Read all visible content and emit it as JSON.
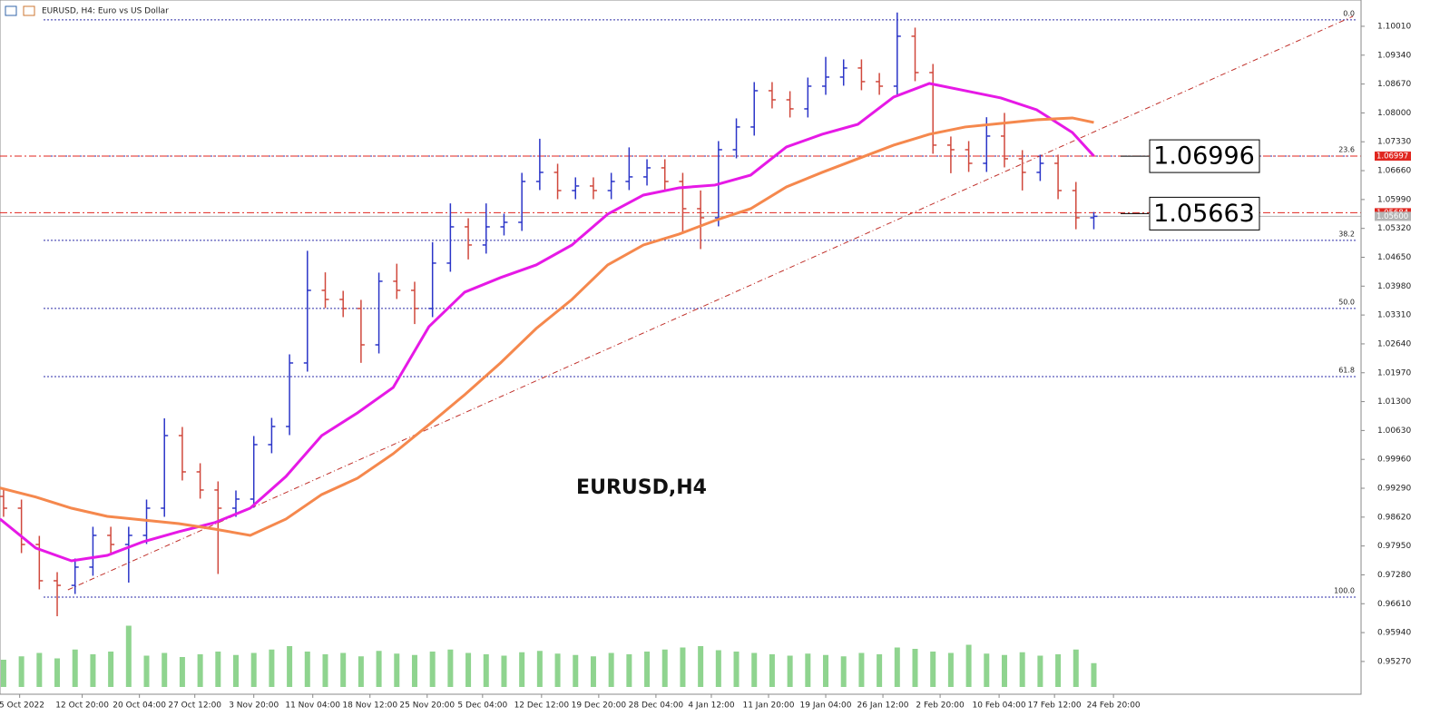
{
  "chart_data": {
    "type": "ohlc",
    "title": "EURUSD, H4:  Euro vs US Dollar",
    "watermark": "EURUSD,H4",
    "up_color": "#2b35c8",
    "down_color": "#d0483c",
    "x": [
      2,
      12,
      22,
      32,
      42,
      52,
      62,
      72,
      82,
      92,
      102,
      112,
      122,
      132,
      142,
      152,
      162,
      172,
      182,
      192,
      202,
      212,
      222,
      232,
      242,
      252,
      262,
      272,
      282,
      292,
      302,
      312,
      322,
      332,
      342,
      352,
      362,
      372,
      382,
      392,
      402,
      412,
      422,
      432,
      442,
      452,
      462,
      472,
      482,
      492,
      502,
      512,
      522,
      532,
      542,
      552,
      562,
      572,
      582,
      592,
      602,
      612
    ],
    "open": [
      0.991,
      0.98827,
      0.97985,
      0.97143,
      0.97036,
      0.97459,
      0.98196,
      0.97985,
      0.98196,
      0.98827,
      1.00512,
      0.9967,
      0.99249,
      0.98827,
      0.99038,
      1.00302,
      1.00723,
      1.02197,
      1.03882,
      1.03671,
      1.03461,
      1.02618,
      1.04093,
      1.03882,
      1.03461,
      1.04514,
      1.05356,
      1.04935,
      1.05356,
      1.05461,
      1.06409,
      1.0662,
      1.06198,
      1.06304,
      1.06198,
      1.06409,
      1.06515,
      1.06725,
      1.06409,
      1.05777,
      1.05567,
      1.07146,
      1.07673,
      1.08515,
      1.08304,
      1.08094,
      1.0862,
      1.08831,
      1.09042,
      1.08726,
      1.0862,
      1.09779,
      1.08936,
      1.07252,
      1.07146,
      1.0683,
      1.07462,
      1.06936,
      1.0662,
      1.0683,
      1.06198,
      1.05567
    ],
    "high": [
      0.993,
      0.99027,
      0.98185,
      0.97343,
      0.97659,
      0.98396,
      0.98396,
      0.98396,
      0.99027,
      1.00912,
      1.00712,
      0.9987,
      0.99449,
      0.99238,
      1.00502,
      1.00923,
      1.02397,
      1.048,
      1.043,
      1.03871,
      1.03661,
      1.04293,
      1.045,
      1.04082,
      1.05,
      1.059,
      1.05556,
      1.059,
      1.05661,
      1.06609,
      1.074,
      1.0682,
      1.06504,
      1.06504,
      1.06609,
      1.072,
      1.06925,
      1.06925,
      1.06609,
      1.062,
      1.07346,
      1.07873,
      1.08715,
      1.08715,
      1.08504,
      1.0882,
      1.093,
      1.09242,
      1.09242,
      1.08926,
      1.1033,
      1.09979,
      1.09136,
      1.07452,
      1.07346,
      1.079,
      1.08,
      1.07136,
      1.0703,
      1.0703,
      1.06398,
      1.057
    ],
    "low": [
      0.98627,
      0.97785,
      0.96943,
      0.9632,
      0.96836,
      0.97259,
      0.97785,
      0.971,
      0.97996,
      0.98627,
      0.9947,
      0.99049,
      0.973,
      0.98627,
      0.98838,
      1.00102,
      1.00523,
      1.01997,
      1.03471,
      1.03261,
      1.022,
      1.02418,
      1.03682,
      1.031,
      1.03261,
      1.04314,
      1.046,
      1.04735,
      1.05156,
      1.05261,
      1.06209,
      1.05998,
      1.05998,
      1.05998,
      1.05998,
      1.06209,
      1.06315,
      1.06209,
      1.052,
      1.0484,
      1.05367,
      1.06946,
      1.07473,
      1.08104,
      1.07894,
      1.07894,
      1.0842,
      1.08631,
      1.08526,
      1.0842,
      1.0842,
      1.08736,
      1.07052,
      1.066,
      1.0663,
      1.0663,
      1.06736,
      1.062,
      1.0642,
      1.05998,
      1.053,
      1.053
    ],
    "close": [
      0.98827,
      0.97985,
      0.97143,
      0.97036,
      0.97459,
      0.98196,
      0.97985,
      0.98196,
      0.98827,
      1.00512,
      0.9967,
      0.99249,
      0.98827,
      0.99038,
      1.00302,
      1.00723,
      1.02197,
      1.03882,
      1.03671,
      1.03461,
      1.02618,
      1.04093,
      1.03882,
      1.03461,
      1.04514,
      1.05356,
      1.04935,
      1.05356,
      1.05461,
      1.06409,
      1.0662,
      1.06198,
      1.06304,
      1.06198,
      1.06409,
      1.06515,
      1.06725,
      1.06409,
      1.05777,
      1.05567,
      1.07146,
      1.07673,
      1.08515,
      1.08304,
      1.08094,
      1.0862,
      1.08831,
      1.09042,
      1.08726,
      1.0862,
      1.09779,
      1.08936,
      1.07252,
      1.07146,
      1.0683,
      1.07462,
      1.06936,
      1.0662,
      1.0683,
      1.06198,
      1.05567,
      1.056
    ],
    "volume": [
      40,
      45,
      50,
      42,
      55,
      48,
      52,
      90,
      46,
      50,
      44,
      48,
      52,
      47,
      50,
      55,
      60,
      52,
      48,
      50,
      45,
      53,
      49,
      47,
      52,
      55,
      50,
      48,
      46,
      51,
      53,
      49,
      47,
      45,
      50,
      48,
      52,
      55,
      58,
      60,
      54,
      52,
      50,
      48,
      46,
      49,
      47,
      45,
      50,
      48,
      58,
      56,
      52,
      50,
      62,
      49,
      47,
      51,
      46,
      48,
      55,
      35
    ],
    "vlim": [
      0,
      100
    ],
    "volume_color": "#8fd48f",
    "moving_averages": [
      {
        "color": "#e619e6",
        "x": [
          0,
          20,
          40,
          60,
          80,
          100,
          120,
          140,
          160,
          180,
          200,
          220,
          240,
          260,
          280,
          300,
          320,
          340,
          360,
          380,
          400,
          420,
          440,
          460,
          480,
          500,
          520,
          540,
          560,
          580,
          600,
          612
        ],
        "values": [
          0.98575,
          0.97901,
          0.97606,
          0.97732,
          0.98048,
          0.9828,
          0.9849,
          0.98827,
          0.99564,
          1.00512,
          1.01039,
          1.01628,
          1.0304,
          1.0384,
          1.04177,
          1.04472,
          1.04935,
          1.05651,
          1.06093,
          1.06262,
          1.06325,
          1.06556,
          1.07209,
          1.07504,
          1.07736,
          1.08368,
          1.08683,
          1.08515,
          1.08347,
          1.08073,
          1.07546,
          1.06999
        ]
      },
      {
        "color": "#f5884d",
        "x": [
          0,
          20,
          40,
          60,
          80,
          100,
          120,
          140,
          160,
          180,
          200,
          220,
          240,
          260,
          280,
          300,
          320,
          340,
          360,
          380,
          400,
          420,
          440,
          460,
          480,
          500,
          520,
          540,
          560,
          580,
          600,
          612
        ],
        "values": [
          0.99297,
          0.99086,
          0.98827,
          0.98638,
          0.98554,
          0.9847,
          0.98343,
          0.98196,
          0.98575,
          0.99144,
          0.99522,
          1.00091,
          1.00765,
          1.0146,
          1.02197,
          1.02997,
          1.03671,
          1.04472,
          1.04935,
          1.05188,
          1.05503,
          1.05777,
          1.06283,
          1.0662,
          1.06936,
          1.07251,
          1.07504,
          1.07673,
          1.07757,
          1.07841,
          1.07883,
          1.07778
        ]
      }
    ],
    "trendline": {
      "x": [
        38,
        757
      ],
      "values": [
        0.96932,
        1.10242
      ],
      "color": "#c0302a"
    },
    "fib": {
      "levels": [
        {
          "value": 0,
          "label": "0.0"
        },
        23.6,
        38.2,
        {
          "value": 50,
          "label": "50.0"
        },
        61.8,
        {
          "value": 100,
          "label": "100.0"
        }
      ],
      "prices": [
        1.1016,
        1.06999,
        1.05043,
        1.03462,
        1.01881,
        0.96764
      ],
      "color": "#2c2ca8"
    },
    "price_tags": [
      1.06997,
      1.05684,
      {
        "value": 1.056,
        "label": "1.05600"
      }
    ],
    "price_tag_colors": [
      "#e0261f",
      "#e0261f",
      "#b4b4b4"
    ],
    "annotations": [
      1.06996,
      1.05663
    ],
    "xlim": [
      0,
      760
    ],
    "ylim": [
      0.9451,
      1.1062
    ],
    "yticks": [
      {
        "value": 1.1001,
        "label": "1.10010"
      },
      {
        "value": 1.0934,
        "label": "1.09340"
      },
      {
        "value": 1.0867,
        "label": "1.08670"
      },
      {
        "value": 1.08,
        "label": "1.08000"
      },
      {
        "value": 1.0733,
        "label": "1.07330"
      },
      {
        "value": 1.0666,
        "label": "1.06660"
      },
      {
        "value": 1.0599,
        "label": "1.05990"
      },
      {
        "value": 1.0532,
        "label": "1.05320"
      },
      {
        "value": 1.0465,
        "label": "1.04650"
      },
      {
        "value": 1.0398,
        "label": "1.03980"
      },
      {
        "value": 1.0331,
        "label": "1.03310"
      },
      {
        "value": 1.0264,
        "label": "1.02640"
      },
      {
        "value": 1.0197,
        "label": "1.01970"
      },
      {
        "value": 1.013,
        "label": "1.01300"
      },
      {
        "value": 1.0063,
        "label": "1.00630"
      },
      {
        "value": 0.9996,
        "label": "0.99960"
      },
      {
        "value": 0.9929,
        "label": "0.99290"
      },
      {
        "value": 0.9862,
        "label": "0.98620"
      },
      {
        "value": 0.9795,
        "label": "0.97950"
      },
      {
        "value": 0.9728,
        "label": "0.97280"
      },
      {
        "value": 0.9661,
        "label": "0.96610"
      },
      {
        "value": 0.9594,
        "label": "0.95940"
      },
      {
        "value": 0.9527,
        "label": "0.95270"
      }
    ],
    "xticks": [
      {
        "value": 11,
        "label": "5 Oct 2022"
      },
      {
        "value": 46,
        "label": "12 Oct 20:00"
      },
      {
        "value": 78,
        "label": "20 Oct 04:00"
      },
      {
        "value": 109,
        "label": "27 Oct 12:00"
      },
      {
        "value": 142,
        "label": "3 Nov 20:00"
      },
      {
        "value": 175,
        "label": "11 Nov 04:00"
      },
      {
        "value": 207,
        "label": "18 Nov 12:00"
      },
      {
        "value": 239,
        "label": "25 Nov 20:00"
      },
      {
        "value": 270,
        "label": "5 Dec 04:00"
      },
      {
        "value": 303,
        "label": "12 Dec 12:00"
      },
      {
        "value": 335,
        "label": "19 Dec 20:00"
      },
      {
        "value": 367,
        "label": "28 Dec 04:00"
      },
      {
        "value": 398,
        "label": "4 Jan 12:00"
      },
      {
        "value": 430,
        "label": "11 Jan 20:00"
      },
      {
        "value": 462,
        "label": "19 Jan 04:00"
      },
      {
        "value": 494,
        "label": "26 Jan 12:00"
      },
      {
        "value": 526,
        "label": "2 Feb 20:00"
      },
      {
        "value": 559,
        "label": "10 Feb 04:00"
      },
      {
        "value": 590,
        "label": "17 Feb 12:00"
      },
      {
        "value": 623,
        "label": "24 Feb 20:00"
      }
    ]
  }
}
